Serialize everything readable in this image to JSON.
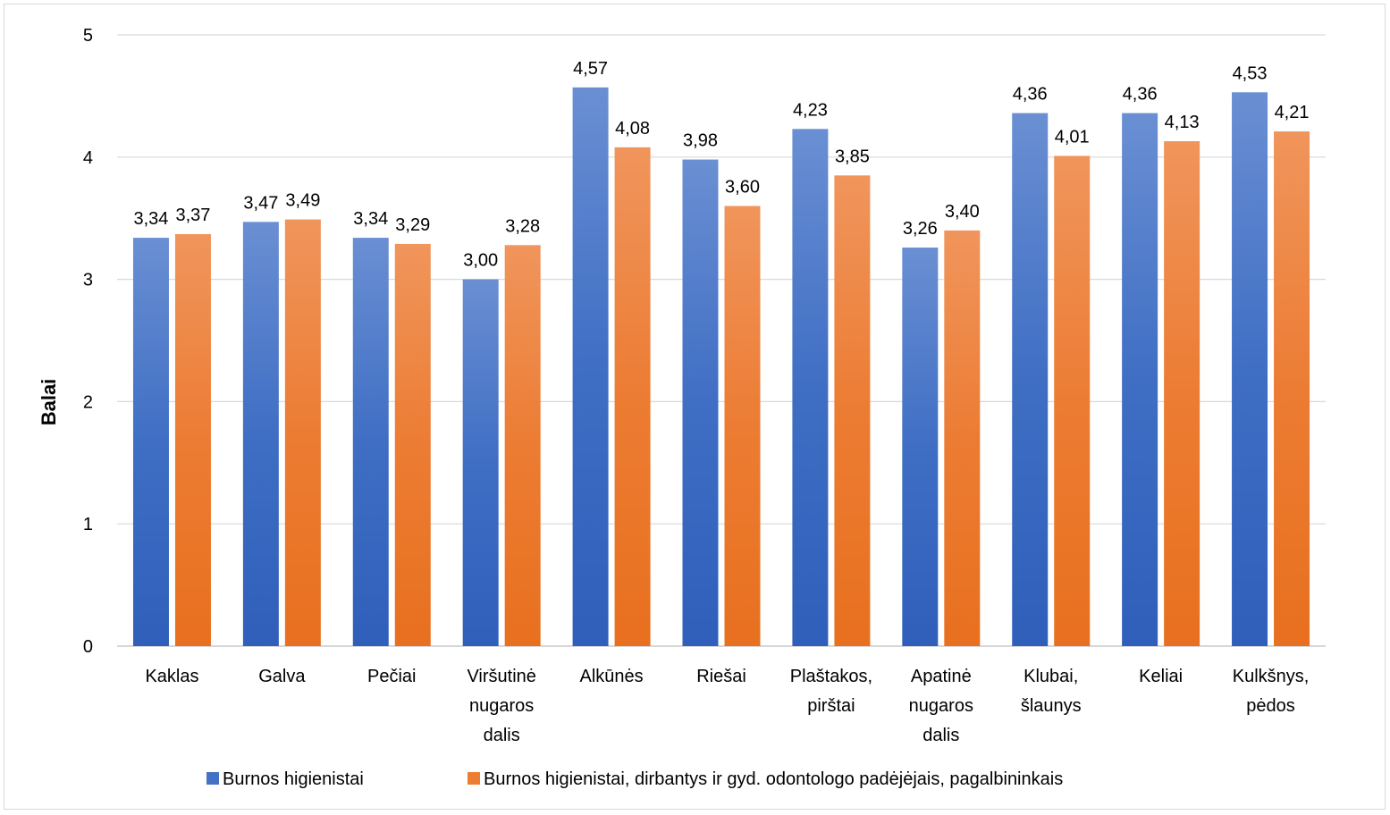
{
  "chart_data": {
    "type": "bar",
    "title": "",
    "xlabel": "",
    "ylabel": "Balai",
    "ylim": [
      0,
      5
    ],
    "yticks": [
      "0",
      "1",
      "2",
      "3",
      "4",
      "5"
    ],
    "grid": true,
    "legend_position": "bottom",
    "categories": [
      [
        "Kaklas"
      ],
      [
        "Galva"
      ],
      [
        "Pečiai"
      ],
      [
        "Viršutinė",
        "nugaros",
        "dalis"
      ],
      [
        "Alkūnės"
      ],
      [
        "Riešai"
      ],
      [
        "Plaštakos,",
        "pirštai"
      ],
      [
        "Apatinė",
        "nugaros",
        "dalis"
      ],
      [
        "Klubai,",
        "šlaunys"
      ],
      [
        "Keliai"
      ],
      [
        "Kulkšnys,",
        "pėdos"
      ]
    ],
    "series": [
      {
        "name": "Burnos higienistai",
        "color": "#4472c4",
        "values": [
          3.34,
          3.47,
          3.34,
          3.0,
          4.57,
          3.98,
          4.23,
          3.26,
          4.36,
          4.36,
          4.53
        ],
        "labels": [
          "3,34",
          "3,47",
          "3,34",
          "3,00",
          "4,57",
          "3,98",
          "4,23",
          "3,26",
          "4,36",
          "4,36",
          "4,53"
        ]
      },
      {
        "name": "Burnos higienistai, dirbantys ir gyd. odontologo padėjėjais, pagalbininkais",
        "color": "#ed7d31",
        "values": [
          3.37,
          3.49,
          3.29,
          3.28,
          4.08,
          3.6,
          3.85,
          3.4,
          4.01,
          4.13,
          4.21
        ],
        "labels": [
          "3,37",
          "3,49",
          "3,29",
          "3,28",
          "4,08",
          "3,60",
          "3,85",
          "3,40",
          "4,01",
          "4,13",
          "4,21"
        ]
      }
    ]
  }
}
